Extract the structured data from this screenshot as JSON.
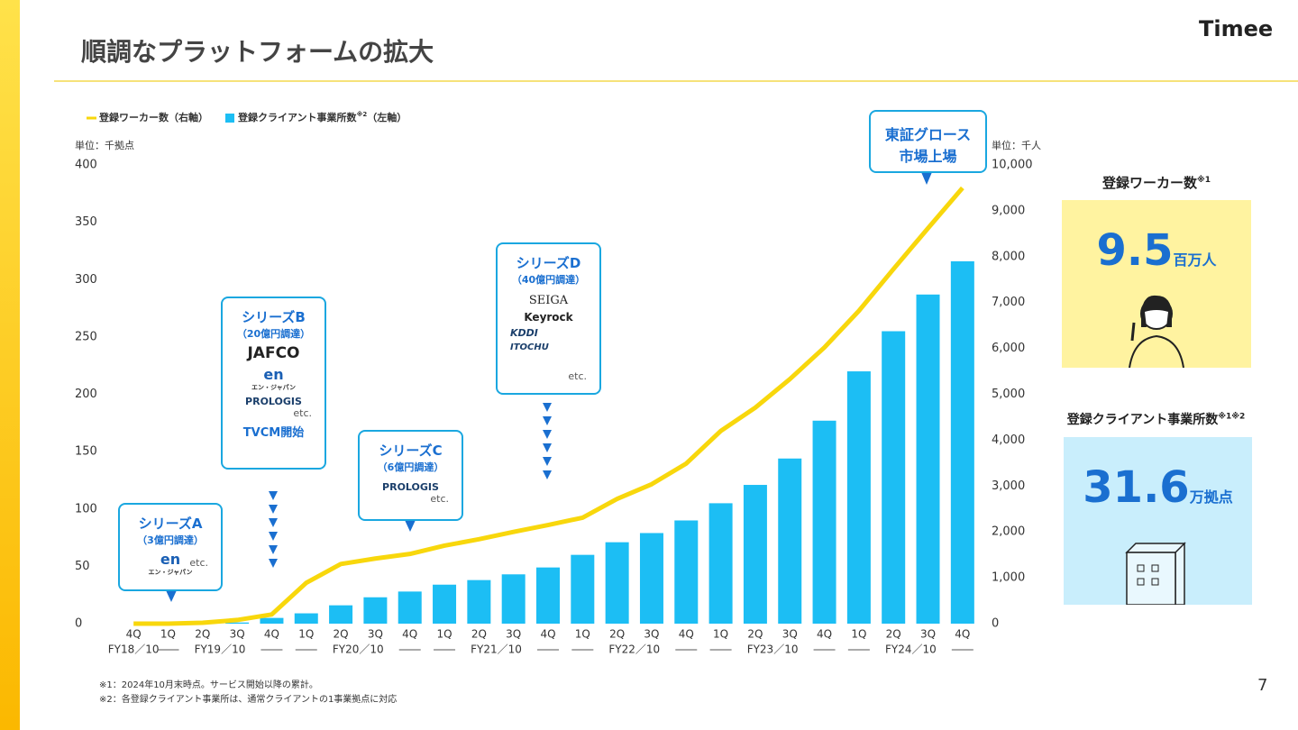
{
  "header": {
    "title": "順調なプラットフォームの拡大",
    "logo": "Timee"
  },
  "chart_data": {
    "type": "bar_line",
    "left_unit": "単位：千拠点",
    "right_unit": "単位：千人",
    "categories": [
      "4Q",
      "1Q",
      "2Q",
      "3Q",
      "4Q",
      "1Q",
      "2Q",
      "3Q",
      "4Q",
      "1Q",
      "2Q",
      "3Q",
      "4Q",
      "1Q",
      "2Q",
      "3Q",
      "4Q",
      "1Q",
      "2Q",
      "3Q",
      "4Q",
      "1Q",
      "2Q",
      "3Q",
      "4Q"
    ],
    "x_groups": [
      {
        "label": "FY18／10",
        "count": 1
      },
      {
        "label": "FY19／10",
        "count": 4
      },
      {
        "label": "FY20／10",
        "count": 4
      },
      {
        "label": "FY21／10",
        "count": 4
      },
      {
        "label": "FY22／10",
        "count": 4
      },
      {
        "label": "FY23／10",
        "count": 4
      },
      {
        "label": "FY24／10",
        "count": 4
      }
    ],
    "series": [
      {
        "name": "登録ワーカー数",
        "axis_label": "（右軸）",
        "type": "line",
        "axis": "y2",
        "color": "#f8d70c",
        "values": [
          0,
          0,
          20,
          80,
          200,
          890,
          1300,
          1420,
          1520,
          1700,
          1840,
          2000,
          2150,
          2310,
          2720,
          3040,
          3490,
          4200,
          4710,
          5330,
          6020,
          6820,
          7730,
          8620,
          9500
        ]
      },
      {
        "name": "登録クライアント事業所数",
        "note": "※2",
        "axis_label": "（左軸）",
        "type": "bar",
        "axis": "y",
        "color": "#1cbef4",
        "values": [
          0,
          0,
          0.5,
          1,
          5,
          9,
          16,
          23,
          28,
          34,
          38,
          43,
          49,
          60,
          71,
          79,
          90,
          105,
          121,
          144,
          177,
          220,
          255,
          287,
          316
        ]
      }
    ],
    "ylim": [
      0,
      400
    ],
    "yticks": [
      0,
      50,
      100,
      150,
      200,
      250,
      300,
      350,
      400
    ],
    "y2lim": [
      0,
      10000
    ],
    "y2ticks": [
      0,
      {
        "value": 1000,
        "label": "1,000"
      },
      {
        "value": 2000,
        "label": "2,000"
      },
      {
        "value": 3000,
        "label": "3,000"
      },
      {
        "value": 4000,
        "label": "4,000"
      },
      {
        "value": 5000,
        "label": "5,000"
      },
      {
        "value": 6000,
        "label": "6,000"
      },
      {
        "value": 7000,
        "label": "7,000"
      },
      {
        "value": 8000,
        "label": "8,000"
      },
      {
        "value": 9000,
        "label": "9,000"
      },
      {
        "value": 10000,
        "label": "10,000"
      }
    ],
    "grid": false,
    "annotations": [
      {
        "title": "シリーズA",
        "amount": "（3億円調達）",
        "logos": [
          "en",
          "エン・ジャパン"
        ],
        "etc": "etc."
      },
      {
        "title": "シリーズB",
        "amount": "（20億円調達）",
        "logos": [
          "JAFCO",
          "en",
          "エン・ジャパン",
          "PROLOGIS"
        ],
        "etc": "etc.",
        "event": "TVCM開始"
      },
      {
        "title": "シリーズC",
        "amount": "（6億円調達）",
        "logos": [
          "PROLOGIS"
        ],
        "etc": "etc."
      },
      {
        "title": "シリーズD",
        "amount": "（40億円調達）",
        "logos": [
          "SEIGA",
          "Keyrock",
          "KDDI",
          "ITOCHU"
        ],
        "etc": "etc."
      },
      {
        "lines": [
          "東証グロース",
          "市場上場"
        ]
      }
    ]
  },
  "kpis": [
    {
      "label": "登録ワーカー数",
      "note": "※1",
      "value": 9.5,
      "unit": "百万人"
    },
    {
      "label": "登録クライアント事業所数",
      "note": "※1※2",
      "value": 31.6,
      "unit": "万拠点"
    }
  ],
  "footnotes": [
    "※1：2024年10月末時点。サービス開始以降の累計。",
    "※2：各登録クライアント事業所は、通常クライアントの1事業拠点に対応"
  ],
  "page_number": 7
}
